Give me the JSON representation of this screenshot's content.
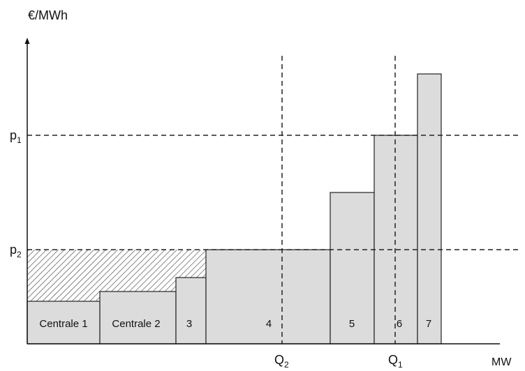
{
  "y_axis_unit": "€/MWh",
  "x_axis_unit": "MW",
  "price_levels": [
    {
      "id": "p1",
      "base": "p",
      "sub": "1"
    },
    {
      "id": "p2",
      "base": "p",
      "sub": "2"
    }
  ],
  "quantity_levels": [
    {
      "id": "Q2",
      "base": "Q",
      "sub": "2"
    },
    {
      "id": "Q1",
      "base": "Q",
      "sub": "1"
    }
  ],
  "plants": [
    {
      "label": "Centrale 1"
    },
    {
      "label": "Centrale 2"
    },
    {
      "label": "3"
    },
    {
      "label": "4"
    },
    {
      "label": "5"
    },
    {
      "label": "6"
    },
    {
      "label": "7"
    }
  ],
  "colors": {
    "bar_fill": "#dcdcdc",
    "line": "#222222",
    "hatch": "#555555"
  }
}
